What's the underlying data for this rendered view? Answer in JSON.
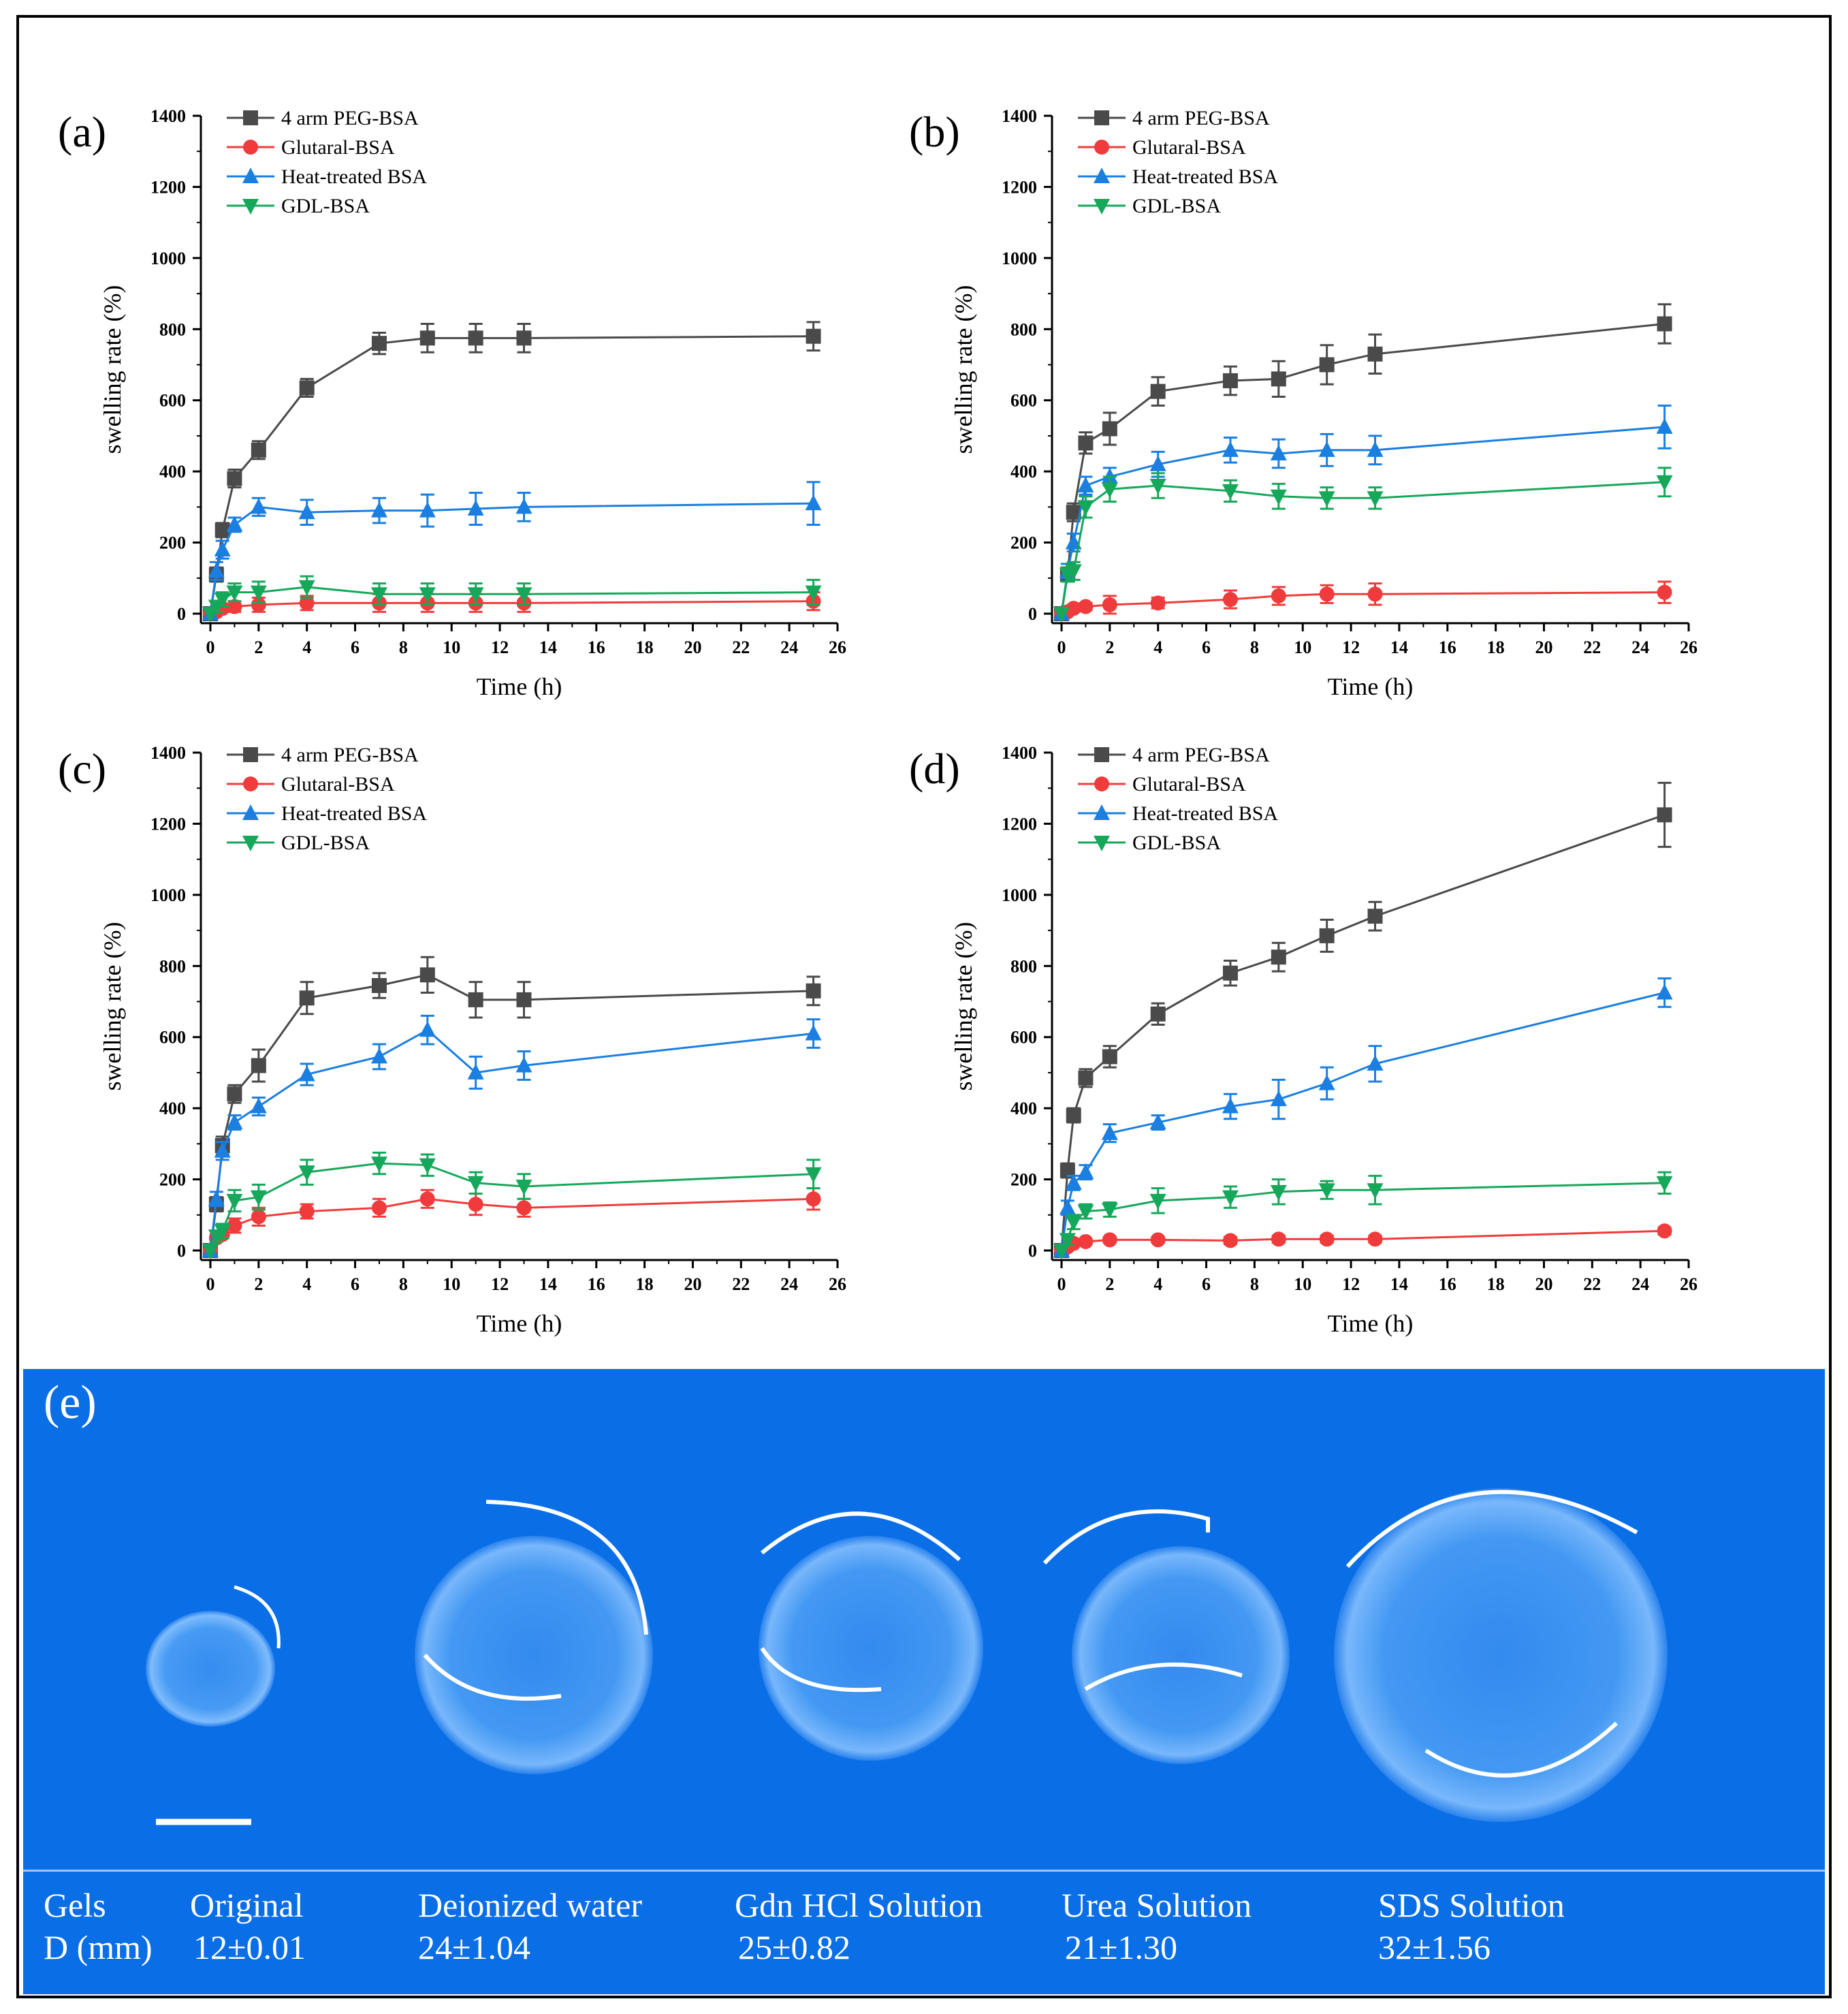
{
  "panels": [
    {
      "label": "(a)",
      "xlabel": "Time (h)",
      "ylabel": "swelling rate (%)"
    },
    {
      "label": "(b)",
      "xlabel": "Time (h)",
      "ylabel": "swelling rate (%)"
    },
    {
      "label": "(c)",
      "xlabel": "Time (h)",
      "ylabel": "swelling rate (%)"
    },
    {
      "label": "(d)",
      "xlabel": "Time (h)",
      "ylabel": "swelling rate (%)"
    }
  ],
  "legend": [
    "4 arm PEG-BSA",
    "Glutaral-BSA",
    "Heat-treated BSA",
    "GDL-BSA"
  ],
  "colors": {
    "peg": "#4a4a4a",
    "glutaral": "#ef3b3b",
    "heat": "#1a7fe0",
    "gdl": "#16a85a",
    "photo_bg": "#0a6ee6"
  },
  "chart_data": [
    {
      "type": "line",
      "title": "(a)",
      "xlabel": "Time (h)",
      "ylabel": "swelling rate (%)",
      "xlim": [
        0,
        26
      ],
      "ylim": [
        0,
        1400
      ],
      "xticks": [
        0,
        2,
        4,
        6,
        8,
        10,
        12,
        14,
        16,
        18,
        20,
        22,
        24,
        26
      ],
      "yticks": [
        0,
        200,
        400,
        600,
        800,
        1000,
        1200,
        1400
      ],
      "x": [
        0,
        0.25,
        0.5,
        1,
        2,
        4,
        7,
        9,
        11,
        13,
        25
      ],
      "series": [
        {
          "name": "4 arm PEG-BSA",
          "marker": "square",
          "values": [
            0,
            110,
            235,
            380,
            460,
            635,
            760,
            775,
            775,
            775,
            780
          ],
          "errors": [
            0,
            20,
            20,
            25,
            25,
            25,
            30,
            40,
            40,
            40,
            40
          ]
        },
        {
          "name": "Glutaral-BSA",
          "marker": "circle",
          "values": [
            0,
            5,
            15,
            20,
            25,
            30,
            30,
            30,
            30,
            30,
            35
          ],
          "errors": [
            0,
            5,
            10,
            15,
            20,
            20,
            25,
            25,
            25,
            25,
            25
          ]
        },
        {
          "name": "Heat-treated BSA",
          "marker": "triangle-up",
          "values": [
            0,
            120,
            180,
            250,
            300,
            285,
            290,
            290,
            295,
            300,
            310
          ],
          "errors": [
            0,
            25,
            25,
            20,
            25,
            35,
            35,
            45,
            45,
            40,
            60
          ]
        },
        {
          "name": "GDL-BSA",
          "marker": "triangle-down",
          "values": [
            0,
            20,
            40,
            60,
            60,
            75,
            55,
            55,
            55,
            55,
            60
          ],
          "errors": [
            0,
            15,
            20,
            25,
            30,
            30,
            30,
            30,
            30,
            30,
            35
          ]
        }
      ]
    },
    {
      "type": "line",
      "title": "(b)",
      "xlabel": "Time (h)",
      "ylabel": "swelling rate (%)",
      "xlim": [
        0,
        26
      ],
      "ylim": [
        0,
        1400
      ],
      "xticks": [
        0,
        2,
        4,
        6,
        8,
        10,
        12,
        14,
        16,
        18,
        20,
        22,
        24,
        26
      ],
      "yticks": [
        0,
        200,
        400,
        600,
        800,
        1000,
        1200,
        1400
      ],
      "x": [
        0,
        0.25,
        0.5,
        1,
        2,
        4,
        7,
        9,
        11,
        13,
        25
      ],
      "series": [
        {
          "name": "4 arm PEG-BSA",
          "marker": "square",
          "values": [
            0,
            110,
            285,
            480,
            520,
            625,
            655,
            660,
            700,
            730,
            815
          ],
          "errors": [
            0,
            20,
            25,
            30,
            45,
            40,
            40,
            50,
            55,
            55,
            55
          ]
        },
        {
          "name": "Glutaral-BSA",
          "marker": "circle",
          "values": [
            0,
            5,
            15,
            20,
            25,
            30,
            40,
            50,
            55,
            55,
            60
          ],
          "errors": [
            0,
            5,
            10,
            10,
            25,
            15,
            25,
            25,
            25,
            30,
            30
          ]
        },
        {
          "name": "Heat-treated BSA",
          "marker": "triangle-up",
          "values": [
            0,
            120,
            200,
            360,
            385,
            420,
            460,
            450,
            460,
            460,
            525
          ],
          "errors": [
            0,
            20,
            25,
            25,
            25,
            35,
            35,
            40,
            45,
            40,
            60
          ]
        },
        {
          "name": "GDL-BSA",
          "marker": "triangle-down",
          "values": [
            0,
            110,
            120,
            300,
            350,
            360,
            345,
            330,
            325,
            325,
            370
          ],
          "errors": [
            0,
            20,
            25,
            30,
            35,
            35,
            30,
            35,
            30,
            30,
            40
          ]
        }
      ]
    },
    {
      "type": "line",
      "title": "(c)",
      "xlabel": "Time (h)",
      "ylabel": "swelling rate (%)",
      "xlim": [
        0,
        26
      ],
      "ylim": [
        0,
        1400
      ],
      "xticks": [
        0,
        2,
        4,
        6,
        8,
        10,
        12,
        14,
        16,
        18,
        20,
        22,
        24,
        26
      ],
      "yticks": [
        0,
        200,
        400,
        600,
        800,
        1000,
        1200,
        1400
      ],
      "x": [
        0,
        0.25,
        0.5,
        1,
        2,
        4,
        7,
        9,
        11,
        13,
        25
      ],
      "series": [
        {
          "name": "4 arm PEG-BSA",
          "marker": "square",
          "values": [
            0,
            130,
            295,
            440,
            520,
            710,
            745,
            775,
            705,
            705,
            730
          ],
          "errors": [
            0,
            20,
            25,
            25,
            45,
            45,
            35,
            50,
            50,
            50,
            40
          ]
        },
        {
          "name": "Glutaral-BSA",
          "marker": "circle",
          "values": [
            0,
            35,
            45,
            70,
            95,
            110,
            120,
            145,
            130,
            120,
            145
          ],
          "errors": [
            0,
            10,
            10,
            20,
            25,
            20,
            25,
            25,
            30,
            25,
            30
          ]
        },
        {
          "name": "Heat-treated BSA",
          "marker": "triangle-up",
          "values": [
            0,
            145,
            280,
            360,
            405,
            495,
            545,
            620,
            500,
            520,
            610
          ],
          "errors": [
            0,
            20,
            25,
            20,
            25,
            30,
            35,
            40,
            45,
            40,
            40
          ]
        },
        {
          "name": "GDL-BSA",
          "marker": "triangle-down",
          "values": [
            0,
            40,
            55,
            140,
            150,
            220,
            245,
            240,
            190,
            180,
            215
          ],
          "errors": [
            0,
            15,
            20,
            30,
            35,
            35,
            30,
            30,
            30,
            35,
            40
          ]
        }
      ]
    },
    {
      "type": "line",
      "title": "(d)",
      "xlabel": "Time (h)",
      "ylabel": "swelling rate (%)",
      "xlim": [
        0,
        26
      ],
      "ylim": [
        0,
        1400
      ],
      "xticks": [
        0,
        2,
        4,
        6,
        8,
        10,
        12,
        14,
        16,
        18,
        20,
        22,
        24,
        26
      ],
      "yticks": [
        0,
        200,
        400,
        600,
        800,
        1000,
        1200,
        1400
      ],
      "x": [
        0,
        0.25,
        0.5,
        1,
        2,
        4,
        7,
        9,
        11,
        13,
        25
      ],
      "series": [
        {
          "name": "4 arm PEG-BSA",
          "marker": "square",
          "values": [
            0,
            225,
            380,
            485,
            545,
            665,
            780,
            825,
            885,
            940,
            1225
          ],
          "errors": [
            0,
            20,
            20,
            25,
            30,
            30,
            35,
            40,
            45,
            40,
            90
          ]
        },
        {
          "name": "Glutaral-BSA",
          "marker": "circle",
          "values": [
            0,
            10,
            20,
            25,
            30,
            30,
            28,
            32,
            32,
            32,
            55
          ],
          "errors": [
            0,
            5,
            5,
            5,
            8,
            8,
            10,
            10,
            10,
            10,
            10
          ]
        },
        {
          "name": "Heat-treated BSA",
          "marker": "triangle-up",
          "values": [
            0,
            120,
            190,
            220,
            330,
            360,
            405,
            425,
            470,
            525,
            725
          ],
          "errors": [
            0,
            20,
            20,
            20,
            25,
            20,
            35,
            55,
            45,
            50,
            40
          ]
        },
        {
          "name": "GDL-BSA",
          "marker": "triangle-down",
          "values": [
            0,
            30,
            80,
            110,
            115,
            140,
            150,
            165,
            170,
            170,
            190
          ],
          "errors": [
            0,
            15,
            20,
            20,
            20,
            35,
            30,
            35,
            25,
            40,
            30
          ]
        }
      ]
    }
  ],
  "photo": {
    "label": "(e)"
  },
  "table": {
    "row1": [
      "Gels",
      "Original",
      "Deionized water",
      "Gdn HCl Solution",
      "Urea Solution",
      "SDS Solution"
    ],
    "row2": [
      "D (mm)",
      "12±0.01",
      "24±1.04",
      "25±0.82",
      "21±1.30",
      "32±1.56"
    ]
  }
}
